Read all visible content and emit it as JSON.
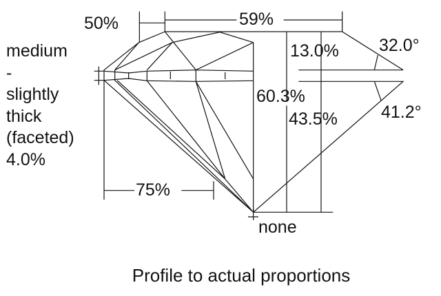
{
  "diagram": {
    "labels": {
      "crown_star": "50%",
      "table": "59%",
      "crown_height": "13.0%",
      "crown_angle": "32.0°",
      "total_depth": "60.3%",
      "pavilion_depth": "43.5%",
      "pavilion_angle": "41.2°",
      "lower_half": "75%",
      "culet": "none"
    },
    "girdle": [
      "medium",
      "-",
      "slightly",
      "thick",
      "(faceted)",
      "4.0%"
    ],
    "caption": "Profile to actual proportions",
    "line_color": "#111111"
  }
}
